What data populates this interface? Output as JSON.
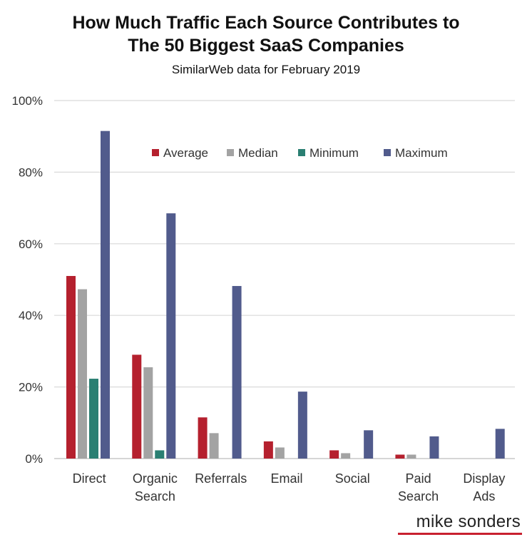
{
  "chart_data": {
    "type": "bar",
    "title_lines": [
      "How Much Traffic Each Source Contributes to",
      "The 50 Biggest SaaS Companies"
    ],
    "subtitle": "SimilarWeb data for February 2019",
    "categories": [
      [
        "Direct"
      ],
      [
        "Organic",
        "Search"
      ],
      [
        "Referrals"
      ],
      [
        "Email"
      ],
      [
        "Social"
      ],
      [
        "Paid",
        "Search"
      ],
      [
        "Display",
        "Ads"
      ]
    ],
    "series": [
      {
        "name": "Average",
        "color": "#b5202e",
        "values": [
          51,
          29,
          11.5,
          4.8,
          2.3,
          1.1,
          0
        ]
      },
      {
        "name": "Median",
        "color": "#a3a3a3",
        "values": [
          47.3,
          25.5,
          7.1,
          3.1,
          1.5,
          1.1,
          0
        ]
      },
      {
        "name": "Minimum",
        "color": "#2a7f72",
        "values": [
          22.3,
          2.3,
          0,
          0,
          0,
          0,
          0
        ]
      },
      {
        "name": "Maximum",
        "color": "#515b8c",
        "values": [
          91.5,
          68.5,
          48.2,
          18.7,
          7.9,
          6.2,
          8.3
        ]
      }
    ],
    "ylim": [
      0,
      100
    ],
    "yticks": [
      "0%",
      "20%",
      "40%",
      "60%",
      "80%",
      "100%"
    ],
    "grid": true,
    "legend_position": "top"
  },
  "brand": {
    "name": "mike sonders",
    "accent": "#c8202f"
  }
}
